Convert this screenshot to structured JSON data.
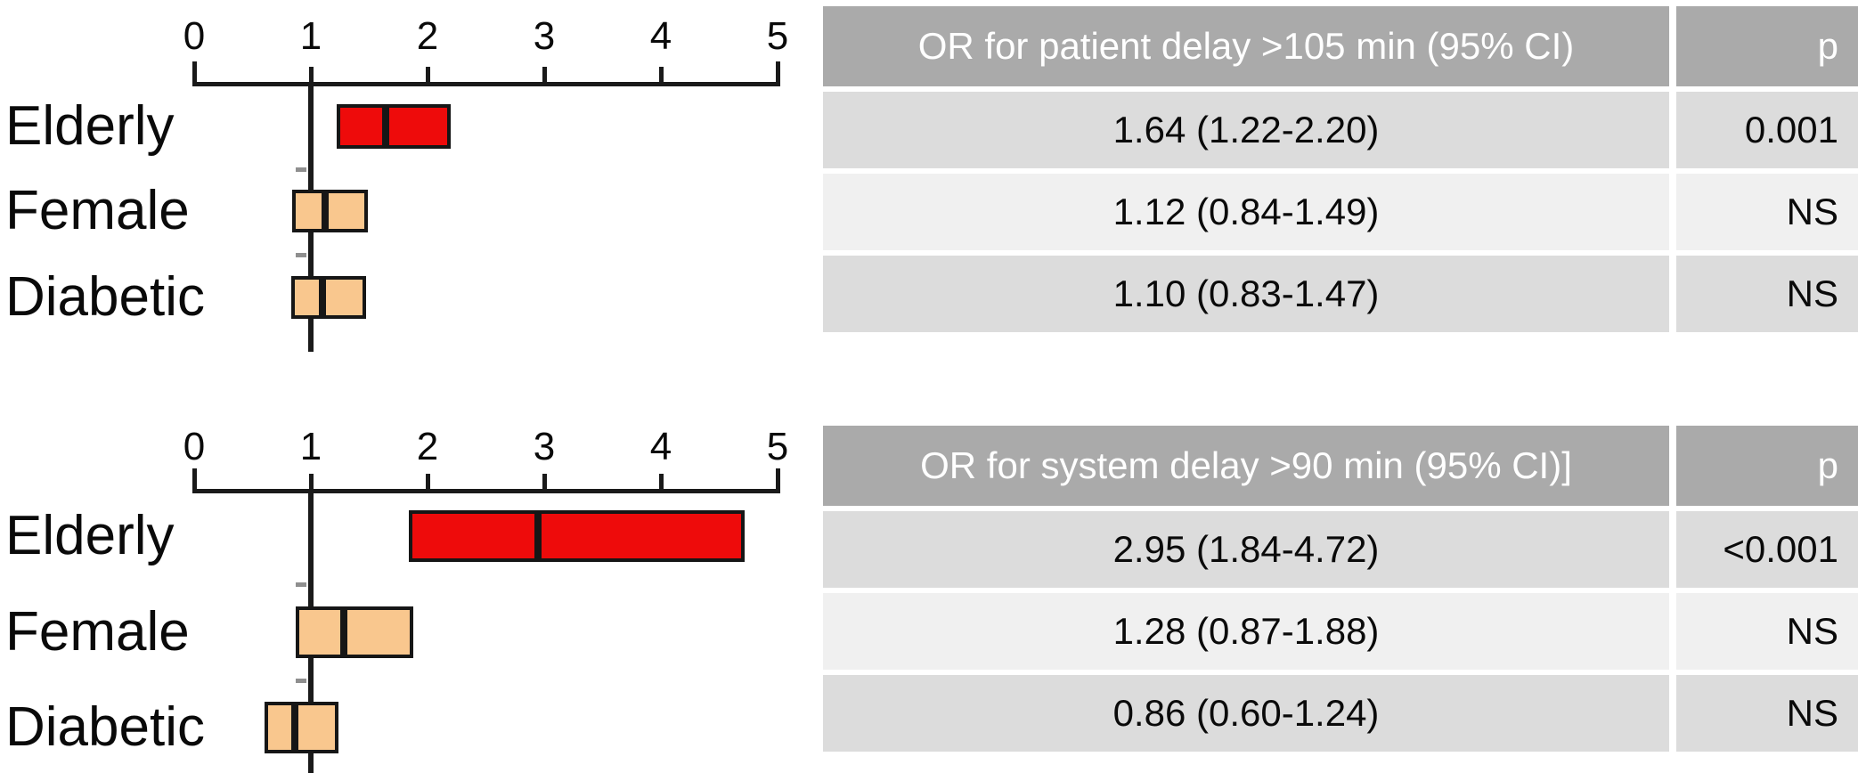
{
  "figure": {
    "description_visible_text_only": true,
    "colors": {
      "significant_bar": "#ee0b0b",
      "nonsignificant_bar": "#f9c78e",
      "bar_border": "#161616",
      "axis": "#1a1a1a",
      "table_header_bg": "#aaaaaa",
      "table_header_text": "#ffffff",
      "table_row_dark": "#dcdcdc",
      "table_row_light": "#f0f0f0",
      "background": "#ffffff"
    }
  },
  "chart_data": [
    {
      "type": "bar",
      "orientation": "horizontal",
      "title": "OR for patient delay >105 min (95% CI)",
      "categories": [
        "Elderly",
        "Female",
        "Diabetic"
      ],
      "series": [
        {
          "name": "OR",
          "values": [
            1.64,
            1.12,
            1.1
          ]
        },
        {
          "name": "CI low",
          "values": [
            1.22,
            0.84,
            0.83
          ]
        },
        {
          "name": "CI high",
          "values": [
            2.2,
            1.49,
            1.47
          ]
        }
      ],
      "p_values": [
        "0.001",
        "NS",
        "NS"
      ],
      "xlim": [
        0,
        5
      ],
      "xticks": [
        "0",
        "1",
        "2",
        "3",
        "4",
        "5"
      ],
      "reference_line": 1,
      "bar_colors": [
        "#ee0b0b",
        "#f9c78e",
        "#f9c78e"
      ],
      "grid": false,
      "legend": "none",
      "xlabel": "",
      "ylabel": ""
    },
    {
      "type": "bar",
      "orientation": "horizontal",
      "title": "OR for system delay >90 min (95% CI)]",
      "categories": [
        "Elderly",
        "Female",
        "Diabetic"
      ],
      "series": [
        {
          "name": "OR",
          "values": [
            2.95,
            1.28,
            0.86
          ]
        },
        {
          "name": "CI low",
          "values": [
            1.84,
            0.87,
            0.6
          ]
        },
        {
          "name": "CI high",
          "values": [
            4.72,
            1.88,
            1.24
          ]
        }
      ],
      "p_values": [
        "<0.001",
        "NS",
        "NS"
      ],
      "xlim": [
        0,
        5
      ],
      "xticks": [
        "0",
        "1",
        "2",
        "3",
        "4",
        "5"
      ],
      "reference_line": 1,
      "bar_colors": [
        "#ee0b0b",
        "#f9c78e",
        "#f9c78e"
      ],
      "grid": false,
      "legend": "none",
      "xlabel": "",
      "ylabel": ""
    }
  ],
  "tables": [
    {
      "header": {
        "or_label": "OR for patient delay >105 min (95% CI)",
        "p_label": "p"
      },
      "rows": [
        {
          "or_ci": "1.64 (1.22-2.20)",
          "p": "0.001"
        },
        {
          "or_ci": "1.12 (0.84-1.49)",
          "p": "NS"
        },
        {
          "or_ci": "1.10 (0.83-1.47)",
          "p": "NS"
        }
      ]
    },
    {
      "header": {
        "or_label": "OR for system delay >90 min (95% CI)]",
        "p_label": "p"
      },
      "rows": [
        {
          "or_ci": "2.95 (1.84-4.72)",
          "p": "<0.001"
        },
        {
          "or_ci": "1.28 (0.87-1.88)",
          "p": "NS"
        },
        {
          "or_ci": "0.86 (0.60-1.24)",
          "p": "NS"
        }
      ]
    }
  ]
}
